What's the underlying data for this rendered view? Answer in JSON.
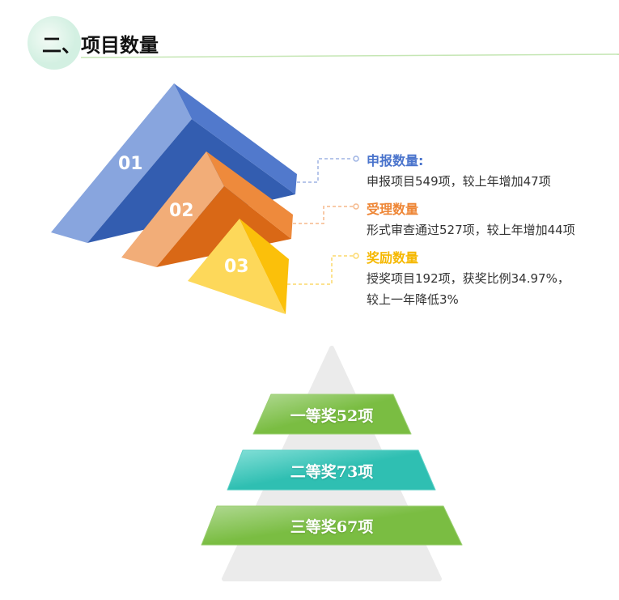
{
  "header": {
    "title": "二、项目数量"
  },
  "pyramid3d": {
    "labels": [
      "01",
      "02",
      "03"
    ]
  },
  "items": [
    {
      "title": "申报数量:",
      "lines": [
        "申报项目549项，较上年增加47项"
      ],
      "color": "#4a74cc"
    },
    {
      "title": "受理数量",
      "lines": [
        "形式审查通过527项，较上年增加44项"
      ],
      "color": "#ee8636"
    },
    {
      "title": "奖励数量",
      "lines": [
        "授奖项目192项，获奖比例34.97%，",
        "较上一年降低3%"
      ],
      "color": "#f5b800"
    }
  ],
  "awards": [
    "一等奖52项",
    "二等奖73项",
    "三等奖67项"
  ],
  "colors": {
    "blue": "#3a63b8",
    "orange": "#e0701c",
    "yellow": "#fdc830",
    "green": "#7abd42",
    "teal": "#2fbfb2"
  }
}
